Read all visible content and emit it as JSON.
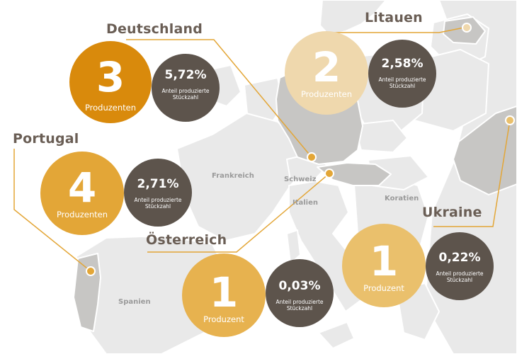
{
  "countries": [
    {
      "id": "deutschland",
      "name": "Deutschland",
      "count": "3",
      "unit": "Produzenten",
      "share": "5,72%",
      "share_label": "Anteil produzierte Stückzahl",
      "color": "#d98a0c"
    },
    {
      "id": "litauen",
      "name": "Litauen",
      "count": "2",
      "unit": "Produzenten",
      "share": "2,58%",
      "share_label": "Anteil produzierte Stückzahl",
      "color": "#efd8ad"
    },
    {
      "id": "portugal",
      "name": "Portugal",
      "count": "4",
      "unit": "Produzenten",
      "share": "2,71%",
      "share_label": "Anteil produzierte Stückzahl",
      "color": "#e3a637"
    },
    {
      "id": "oesterreich",
      "name": "Österreich",
      "count": "1",
      "unit": "Produzent",
      "share": "0,03%",
      "share_label": "Anteil produzierte Stückzahl",
      "color": "#e7b24f"
    },
    {
      "id": "ukraine",
      "name": "Ukraine",
      "count": "1",
      "unit": "Produzent",
      "share": "0,22%",
      "share_label": "Anteil produzierte Stückzahl",
      "color": "#eac06c"
    }
  ],
  "map_labels": {
    "frankreich": "Frankreich",
    "schweiz": "Schweiz",
    "italien": "Italien",
    "kroatien": "Koratien",
    "spanien": "Spanien"
  },
  "colors": {
    "land": "#e9e9e9",
    "highlight": "#c7c6c4",
    "border": "#ffffff",
    "line": "#e3a637",
    "dark": "#5d544c"
  }
}
